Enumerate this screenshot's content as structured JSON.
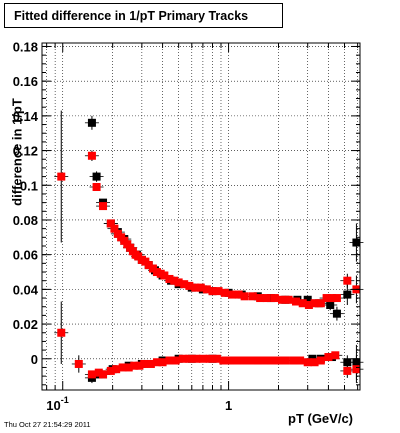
{
  "chart_data": {
    "type": "scatter",
    "title": "Fitted difference in 1/pT  Primary Tracks",
    "xlabel": "pT (GeV/c)",
    "ylabel": "difference in 1/pT",
    "footer": "Thu Oct 27 21:54:29 2011",
    "x_scale": "log",
    "xlim": [
      0.075,
      6.2
    ],
    "ylim": [
      -0.018,
      0.182
    ],
    "grid": true,
    "x_tick_labels": [
      {
        "value": 0.1,
        "base": "10",
        "exp": "-1"
      },
      {
        "value": 1,
        "label": "1"
      }
    ],
    "y_ticks": [
      0,
      0.02,
      0.04,
      0.06,
      0.08,
      0.1,
      0.12,
      0.14,
      0.16,
      0.18
    ],
    "y_tick_labels": [
      "0",
      "0.02",
      "0.04",
      "0.06",
      "0.08",
      "0.1",
      "0.12",
      "0.14",
      "0.16",
      "0.18"
    ],
    "series": [
      {
        "color": "#000000",
        "points": [
          {
            "x": 0.15,
            "y": 0.136,
            "err": 0.004
          },
          {
            "x": 0.16,
            "y": 0.105,
            "err": 0.003
          },
          {
            "x": 0.175,
            "y": 0.09,
            "err": 0.002
          },
          {
            "x": 0.195,
            "y": 0.078,
            "err": 0.001
          },
          {
            "x": 0.215,
            "y": 0.073
          },
          {
            "x": 0.235,
            "y": 0.069
          },
          {
            "x": 0.255,
            "y": 0.064
          },
          {
            "x": 0.28,
            "y": 0.06
          },
          {
            "x": 0.3,
            "y": 0.057
          },
          {
            "x": 0.33,
            "y": 0.054
          },
          {
            "x": 0.36,
            "y": 0.051
          },
          {
            "x": 0.4,
            "y": 0.048
          },
          {
            "x": 0.45,
            "y": 0.045
          },
          {
            "x": 0.5,
            "y": 0.043
          },
          {
            "x": 0.6,
            "y": 0.041
          },
          {
            "x": 0.7,
            "y": 0.04
          },
          {
            "x": 0.8,
            "y": 0.039
          },
          {
            "x": 1.0,
            "y": 0.038
          },
          {
            "x": 1.2,
            "y": 0.037
          },
          {
            "x": 1.5,
            "y": 0.036
          },
          {
            "x": 1.8,
            "y": 0.035
          },
          {
            "x": 2.2,
            "y": 0.034
          },
          {
            "x": 2.6,
            "y": 0.034
          },
          {
            "x": 3.0,
            "y": 0.034
          },
          {
            "x": 3.5,
            "y": 0.032,
            "err": 0.002
          },
          {
            "x": 4.1,
            "y": 0.031,
            "err": 0.003
          },
          {
            "x": 4.5,
            "y": 0.026,
            "err": 0.004
          },
          {
            "x": 5.2,
            "y": 0.037,
            "err": 0.006
          },
          {
            "x": 5.9,
            "y": 0.067,
            "err": 0.011
          },
          {
            "x": 0.15,
            "y": -0.011,
            "err": 0.003
          },
          {
            "x": 0.165,
            "y": -0.009
          },
          {
            "x": 0.175,
            "y": -0.009
          },
          {
            "x": 0.2,
            "y": -0.006
          },
          {
            "x": 0.25,
            "y": -0.004
          },
          {
            "x": 0.3,
            "y": -0.003
          },
          {
            "x": 0.4,
            "y": -0.001
          },
          {
            "x": 0.5,
            "y": 0.0
          },
          {
            "x": 0.6,
            "y": 0.0
          },
          {
            "x": 0.8,
            "y": 0.0
          },
          {
            "x": 1.0,
            "y": -0.001
          },
          {
            "x": 1.5,
            "y": -0.001
          },
          {
            "x": 2.0,
            "y": -0.001
          },
          {
            "x": 2.5,
            "y": -0.001
          },
          {
            "x": 3.2,
            "y": 0.0
          },
          {
            "x": 3.6,
            "y": 0.0
          },
          {
            "x": 4.2,
            "y": 0.001
          },
          {
            "x": 5.2,
            "y": -0.002,
            "err": 0.004
          },
          {
            "x": 5.9,
            "y": -0.002,
            "err": 0.01
          }
        ]
      },
      {
        "color": "#ff0000",
        "points": [
          {
            "x": 0.098,
            "y": 0.105,
            "err": 0.038
          },
          {
            "x": 0.098,
            "y": 0.015,
            "err": 0.018
          },
          {
            "x": 0.125,
            "y": -0.003,
            "err": 0.005
          },
          {
            "x": 0.15,
            "y": 0.117,
            "err": 0.003
          },
          {
            "x": 0.16,
            "y": 0.099,
            "err": 0.002
          },
          {
            "x": 0.175,
            "y": 0.088
          },
          {
            "x": 0.195,
            "y": 0.078
          },
          {
            "x": 0.205,
            "y": 0.075
          },
          {
            "x": 0.215,
            "y": 0.072
          },
          {
            "x": 0.225,
            "y": 0.07
          },
          {
            "x": 0.235,
            "y": 0.068
          },
          {
            "x": 0.245,
            "y": 0.066
          },
          {
            "x": 0.255,
            "y": 0.064
          },
          {
            "x": 0.265,
            "y": 0.062
          },
          {
            "x": 0.275,
            "y": 0.06
          },
          {
            "x": 0.285,
            "y": 0.059
          },
          {
            "x": 0.3,
            "y": 0.057
          },
          {
            "x": 0.315,
            "y": 0.056
          },
          {
            "x": 0.33,
            "y": 0.054
          },
          {
            "x": 0.35,
            "y": 0.052
          },
          {
            "x": 0.37,
            "y": 0.05
          },
          {
            "x": 0.39,
            "y": 0.049
          },
          {
            "x": 0.41,
            "y": 0.048
          },
          {
            "x": 0.44,
            "y": 0.046
          },
          {
            "x": 0.47,
            "y": 0.045
          },
          {
            "x": 0.5,
            "y": 0.044
          },
          {
            "x": 0.54,
            "y": 0.043
          },
          {
            "x": 0.58,
            "y": 0.042
          },
          {
            "x": 0.63,
            "y": 0.041
          },
          {
            "x": 0.68,
            "y": 0.041
          },
          {
            "x": 0.74,
            "y": 0.04
          },
          {
            "x": 0.8,
            "y": 0.039
          },
          {
            "x": 0.87,
            "y": 0.039
          },
          {
            "x": 0.95,
            "y": 0.038
          },
          {
            "x": 1.05,
            "y": 0.037
          },
          {
            "x": 1.15,
            "y": 0.037
          },
          {
            "x": 1.25,
            "y": 0.036
          },
          {
            "x": 1.4,
            "y": 0.036
          },
          {
            "x": 1.55,
            "y": 0.035
          },
          {
            "x": 1.7,
            "y": 0.035
          },
          {
            "x": 1.9,
            "y": 0.035
          },
          {
            "x": 2.1,
            "y": 0.034
          },
          {
            "x": 2.3,
            "y": 0.034
          },
          {
            "x": 2.55,
            "y": 0.033
          },
          {
            "x": 2.8,
            "y": 0.032
          },
          {
            "x": 3.05,
            "y": 0.031
          },
          {
            "x": 3.3,
            "y": 0.032
          },
          {
            "x": 3.6,
            "y": 0.032
          },
          {
            "x": 3.9,
            "y": 0.035
          },
          {
            "x": 4.2,
            "y": 0.035
          },
          {
            "x": 4.5,
            "y": 0.035
          },
          {
            "x": 5.2,
            "y": 0.045,
            "err": 0.004
          },
          {
            "x": 5.9,
            "y": 0.04,
            "err": 0.008
          },
          {
            "x": 0.15,
            "y": -0.009,
            "err": 0.002
          },
          {
            "x": 0.165,
            "y": -0.008
          },
          {
            "x": 0.175,
            "y": -0.009
          },
          {
            "x": 0.195,
            "y": -0.007
          },
          {
            "x": 0.21,
            "y": -0.006
          },
          {
            "x": 0.23,
            "y": -0.005
          },
          {
            "x": 0.25,
            "y": -0.005
          },
          {
            "x": 0.27,
            "y": -0.004
          },
          {
            "x": 0.29,
            "y": -0.004
          },
          {
            "x": 0.31,
            "y": -0.003
          },
          {
            "x": 0.34,
            "y": -0.003
          },
          {
            "x": 0.37,
            "y": -0.002
          },
          {
            "x": 0.4,
            "y": -0.002
          },
          {
            "x": 0.44,
            "y": -0.001
          },
          {
            "x": 0.48,
            "y": -0.001
          },
          {
            "x": 0.53,
            "y": 0.0
          },
          {
            "x": 0.58,
            "y": 0.0
          },
          {
            "x": 0.64,
            "y": 0.0
          },
          {
            "x": 0.7,
            "y": 0.0
          },
          {
            "x": 0.77,
            "y": 0.0
          },
          {
            "x": 0.85,
            "y": 0.0
          },
          {
            "x": 0.93,
            "y": -0.001
          },
          {
            "x": 1.02,
            "y": -0.001
          },
          {
            "x": 1.12,
            "y": -0.001
          },
          {
            "x": 1.23,
            "y": -0.001
          },
          {
            "x": 1.35,
            "y": -0.001
          },
          {
            "x": 1.5,
            "y": -0.001
          },
          {
            "x": 1.65,
            "y": -0.001
          },
          {
            "x": 1.8,
            "y": -0.001
          },
          {
            "x": 2.0,
            "y": -0.001
          },
          {
            "x": 2.2,
            "y": -0.001
          },
          {
            "x": 2.45,
            "y": -0.001
          },
          {
            "x": 2.7,
            "y": -0.001
          },
          {
            "x": 3.0,
            "y": -0.002
          },
          {
            "x": 3.3,
            "y": -0.002
          },
          {
            "x": 3.6,
            "y": -0.001
          },
          {
            "x": 4.0,
            "y": 0.001
          },
          {
            "x": 4.4,
            "y": 0.002
          },
          {
            "x": 5.2,
            "y": -0.007,
            "err": 0.004
          },
          {
            "x": 5.9,
            "y": -0.006,
            "err": 0.008
          }
        ]
      }
    ]
  }
}
